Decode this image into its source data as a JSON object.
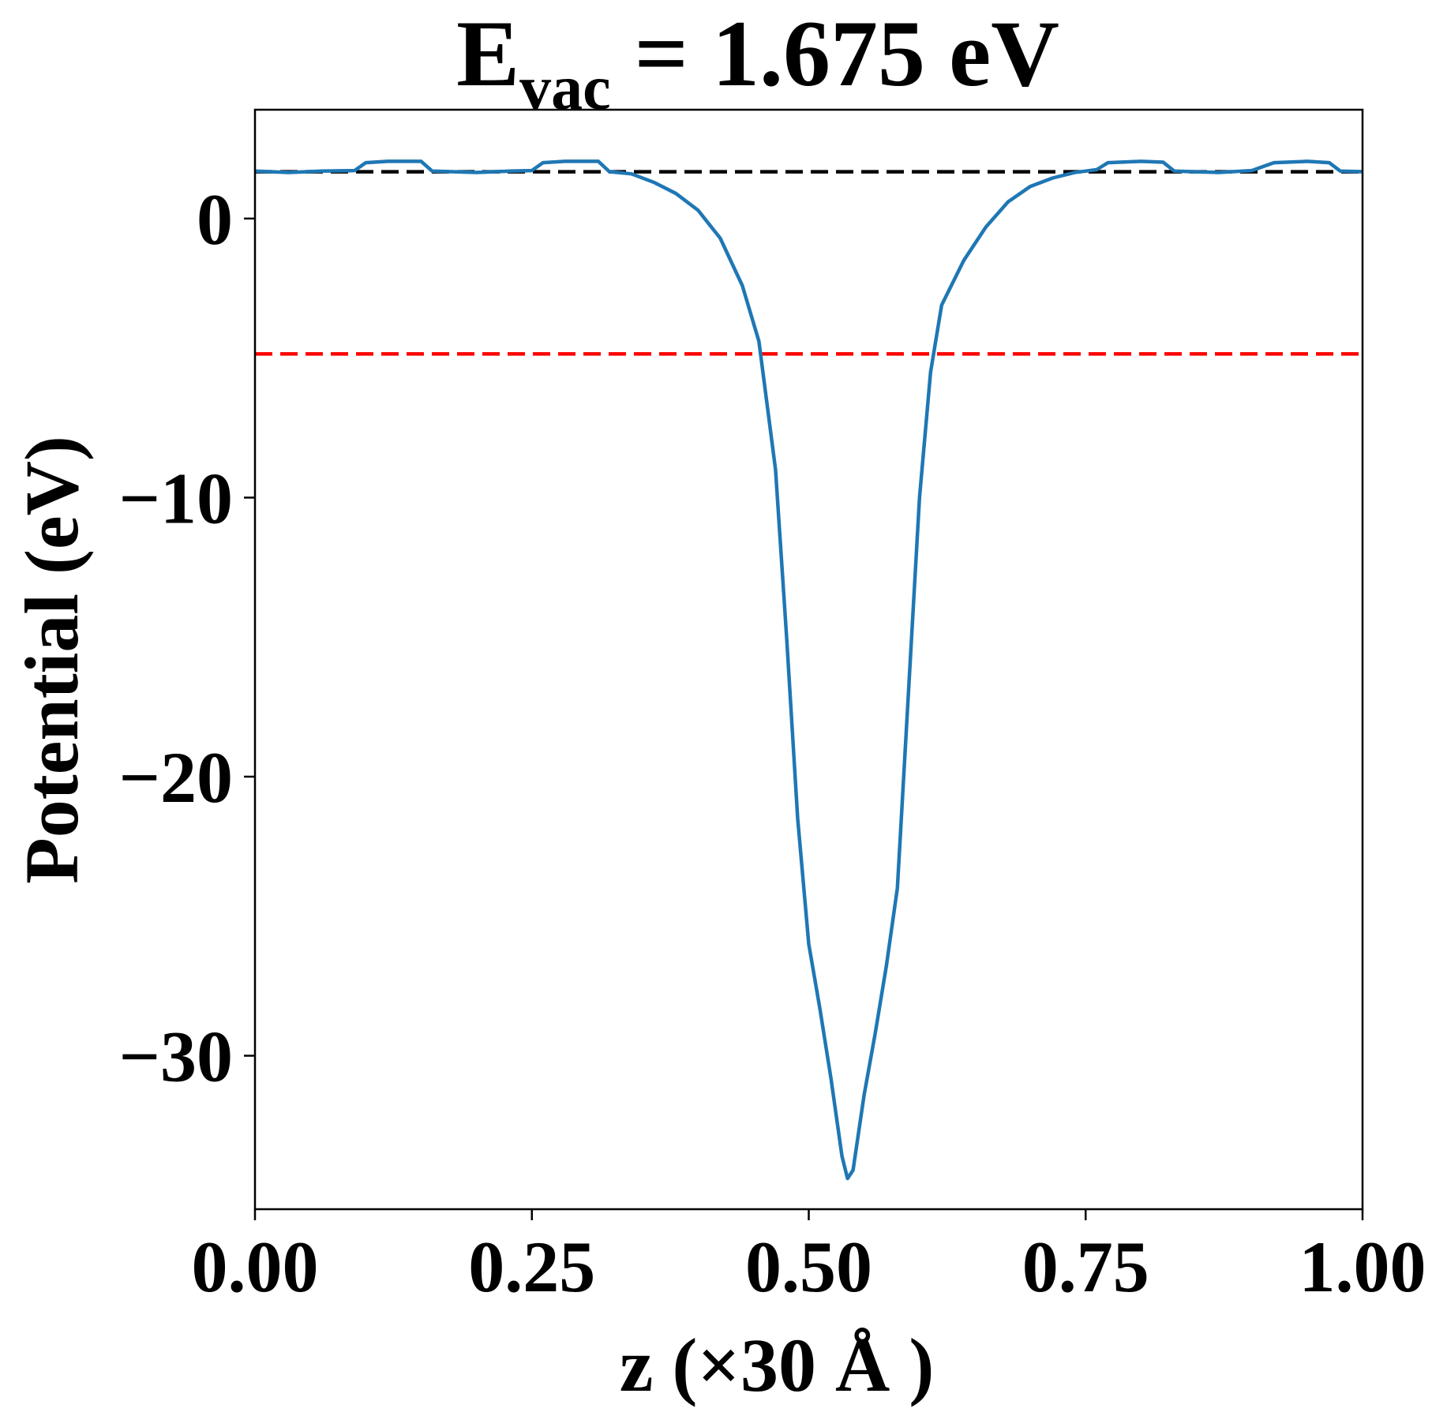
{
  "chart_data": {
    "type": "line",
    "title": {
      "main": "E",
      "subscript": "vac",
      "rest": " = 1.675 eV"
    },
    "xlabel": "z (×30 Å )",
    "ylabel": "Potential (eV)",
    "xlim": [
      0.0,
      1.0
    ],
    "ylim": [
      -35.5,
      3.9
    ],
    "xticks": [
      0.0,
      0.25,
      0.5,
      0.75,
      1.0
    ],
    "xtick_labels": [
      "0.00",
      "0.25",
      "0.50",
      "0.75",
      "1.00"
    ],
    "yticks": [
      0,
      -10,
      -20,
      -30
    ],
    "ytick_labels": [
      "0",
      "−10",
      "−20",
      "−30"
    ],
    "grid": false,
    "reference_lines": [
      {
        "kind": "horizontal",
        "y": 1.675,
        "style": "dashed",
        "color": "#000000"
      },
      {
        "kind": "horizontal",
        "y": -4.85,
        "style": "dashed",
        "color": "#ff0000"
      }
    ],
    "series": [
      {
        "color": "#1f77b4",
        "points": [
          [
            0.0,
            1.7
          ],
          [
            0.03,
            1.65
          ],
          [
            0.06,
            1.7
          ],
          [
            0.09,
            1.72
          ],
          [
            0.1,
            2.0
          ],
          [
            0.12,
            2.05
          ],
          [
            0.15,
            2.05
          ],
          [
            0.16,
            1.7
          ],
          [
            0.2,
            1.65
          ],
          [
            0.23,
            1.7
          ],
          [
            0.25,
            1.72
          ],
          [
            0.26,
            2.0
          ],
          [
            0.28,
            2.05
          ],
          [
            0.31,
            2.05
          ],
          [
            0.32,
            1.68
          ],
          [
            0.34,
            1.6
          ],
          [
            0.36,
            1.3
          ],
          [
            0.38,
            0.9
          ],
          [
            0.4,
            0.3
          ],
          [
            0.42,
            -0.7
          ],
          [
            0.44,
            -2.4
          ],
          [
            0.455,
            -4.4
          ],
          [
            0.47,
            -9.0
          ],
          [
            0.48,
            -15.0
          ],
          [
            0.49,
            -21.5
          ],
          [
            0.5,
            -26.0
          ],
          [
            0.51,
            -28.3
          ],
          [
            0.52,
            -30.8
          ],
          [
            0.53,
            -33.6
          ],
          [
            0.535,
            -34.4
          ],
          [
            0.54,
            -34.1
          ],
          [
            0.55,
            -31.4
          ],
          [
            0.56,
            -29.2
          ],
          [
            0.57,
            -26.8
          ],
          [
            0.58,
            -24.0
          ],
          [
            0.59,
            -17.0
          ],
          [
            0.6,
            -10.0
          ],
          [
            0.61,
            -5.5
          ],
          [
            0.62,
            -3.1
          ],
          [
            0.64,
            -1.5
          ],
          [
            0.66,
            -0.3
          ],
          [
            0.68,
            0.6
          ],
          [
            0.7,
            1.15
          ],
          [
            0.72,
            1.45
          ],
          [
            0.74,
            1.65
          ],
          [
            0.76,
            1.75
          ],
          [
            0.77,
            2.0
          ],
          [
            0.8,
            2.05
          ],
          [
            0.82,
            2.02
          ],
          [
            0.83,
            1.7
          ],
          [
            0.87,
            1.65
          ],
          [
            0.9,
            1.72
          ],
          [
            0.92,
            2.0
          ],
          [
            0.95,
            2.05
          ],
          [
            0.97,
            2.0
          ],
          [
            0.98,
            1.7
          ],
          [
            1.0,
            1.68
          ]
        ]
      }
    ]
  }
}
